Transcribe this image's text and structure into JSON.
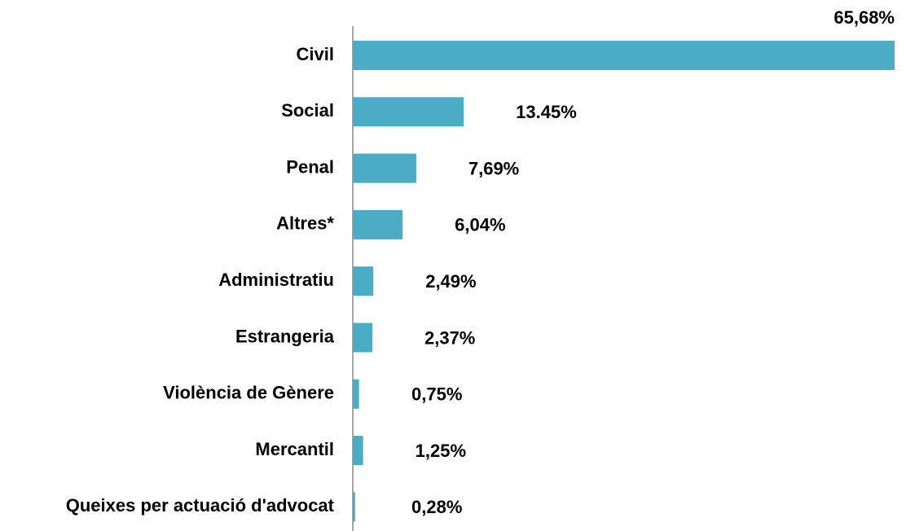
{
  "chart_data": {
    "type": "bar",
    "orientation": "horizontal",
    "categories": [
      "Civil",
      "Social",
      "Penal",
      "Altres*",
      "Administratiu",
      "Estrangeria",
      "Violència de Gènere",
      "Mercantil",
      "Queixes per actuació d'advocat"
    ],
    "values": [
      65.68,
      13.45,
      7.69,
      6.04,
      2.49,
      2.37,
      0.75,
      1.25,
      0.28
    ],
    "value_labels": [
      "65,68%",
      "13.45%",
      "7,69%",
      "6,04%",
      "2,49%",
      "2,37%",
      "0,75%",
      "1,25%",
      "0,28%"
    ],
    "color": "#4bacc6"
  }
}
